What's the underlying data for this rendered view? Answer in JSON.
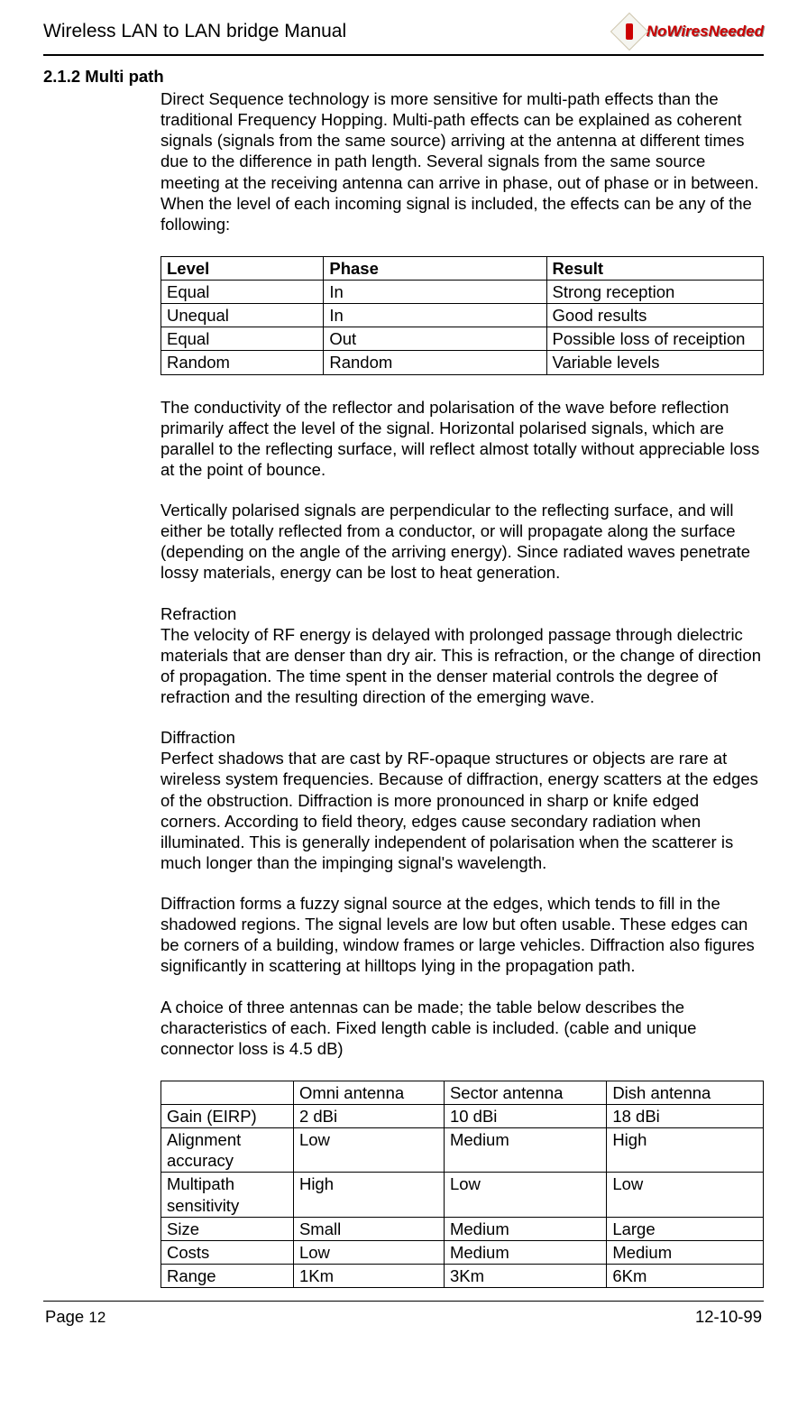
{
  "header": {
    "doc_title": "Wireless LAN to LAN bridge Manual",
    "logo_text": "NoWiresNeeded"
  },
  "section": {
    "number_title": "2.1.2 Multi path"
  },
  "paragraphs": {
    "p1": "Direct Sequence technology is more sensitive for multi-path effects than the traditional Frequency Hopping. Multi-path effects can be explained as coherent signals (signals from the same source) arriving at the antenna at different times due to the difference in path length. Several signals from the same source meeting at the receiving antenna can arrive in phase, out of phase or in between.",
    "p2": "When the level of each incoming signal is included, the effects can be any of the following:",
    "p3": "The conductivity of the reflector and polarisation of the wave before reflection primarily affect the level of the signal.  Horizontal polarised signals, which are parallel to the reflecting surface, will reflect almost totally without appreciable loss at the point of bounce.",
    "p4": "Vertically polarised signals are perpendicular to the reflecting surface, and will either be totally reflected from a conductor, or will propagate along the surface (depending on the angle of the arriving energy). Since radiated waves penetrate lossy materials, energy can be lost to heat generation.",
    "refraction_head": "Refraction",
    "p5": "The velocity of RF energy is delayed with prolonged passage through dielectric materials that are denser than dry air. This is refraction, or the change of direction of propagation. The time spent in the denser material controls the degree of refraction and the resulting direction of the emerging wave.",
    "diffraction_head": "Diffraction",
    "p6": "Perfect shadows that are cast by RF-opaque structures or objects are rare at wireless system frequencies. Because of diffraction, energy scatters at the edges of the obstruction. Diffraction is more pronounced in sharp or knife edged corners. According to field theory, edges cause secondary radiation when illuminated. This is generally independent of polarisation when the scatterer is much longer than the impinging signal's wavelength.",
    "p7": "Diffraction forms a fuzzy signal source at the edges, which tends to fill in the shadowed regions. The signal levels are low but often usable. These edges can be corners of a building, window frames or large vehicles. Diffraction also figures significantly in scattering at hilltops lying in the propagation path.",
    "p8": "A choice of three antennas can be made; the table below describes the characteristics of each. Fixed length cable is included. (cable and unique connector loss is 4.5 dB)"
  },
  "table1": {
    "headers": [
      "Level",
      "Phase",
      "Result"
    ],
    "rows": [
      [
        "Equal",
        "In",
        "Strong reception"
      ],
      [
        "Unequal",
        "In",
        "Good results"
      ],
      [
        "Equal",
        "Out",
        "Possible loss of receiption"
      ],
      [
        "Random",
        "Random",
        "Variable levels"
      ]
    ]
  },
  "table2": {
    "headers": [
      "",
      "Omni antenna",
      "Sector antenna",
      "Dish antenna"
    ],
    "rows": [
      [
        "Gain (EIRP)",
        "2 dBi",
        "10 dBi",
        "18 dBi"
      ],
      [
        "Alignment accuracy",
        "Low",
        "Medium",
        "High"
      ],
      [
        "Multipath sensitivity",
        "High",
        "Low",
        "Low"
      ],
      [
        "Size",
        "Small",
        "Medium",
        "Large"
      ],
      [
        "Costs",
        "Low",
        "Medium",
        "Medium"
      ],
      [
        "Range",
        "1Km",
        "3Km",
        "6Km"
      ]
    ]
  },
  "footer": {
    "page_label": "Page ",
    "page_number": "12",
    "date": "12-10-99"
  }
}
